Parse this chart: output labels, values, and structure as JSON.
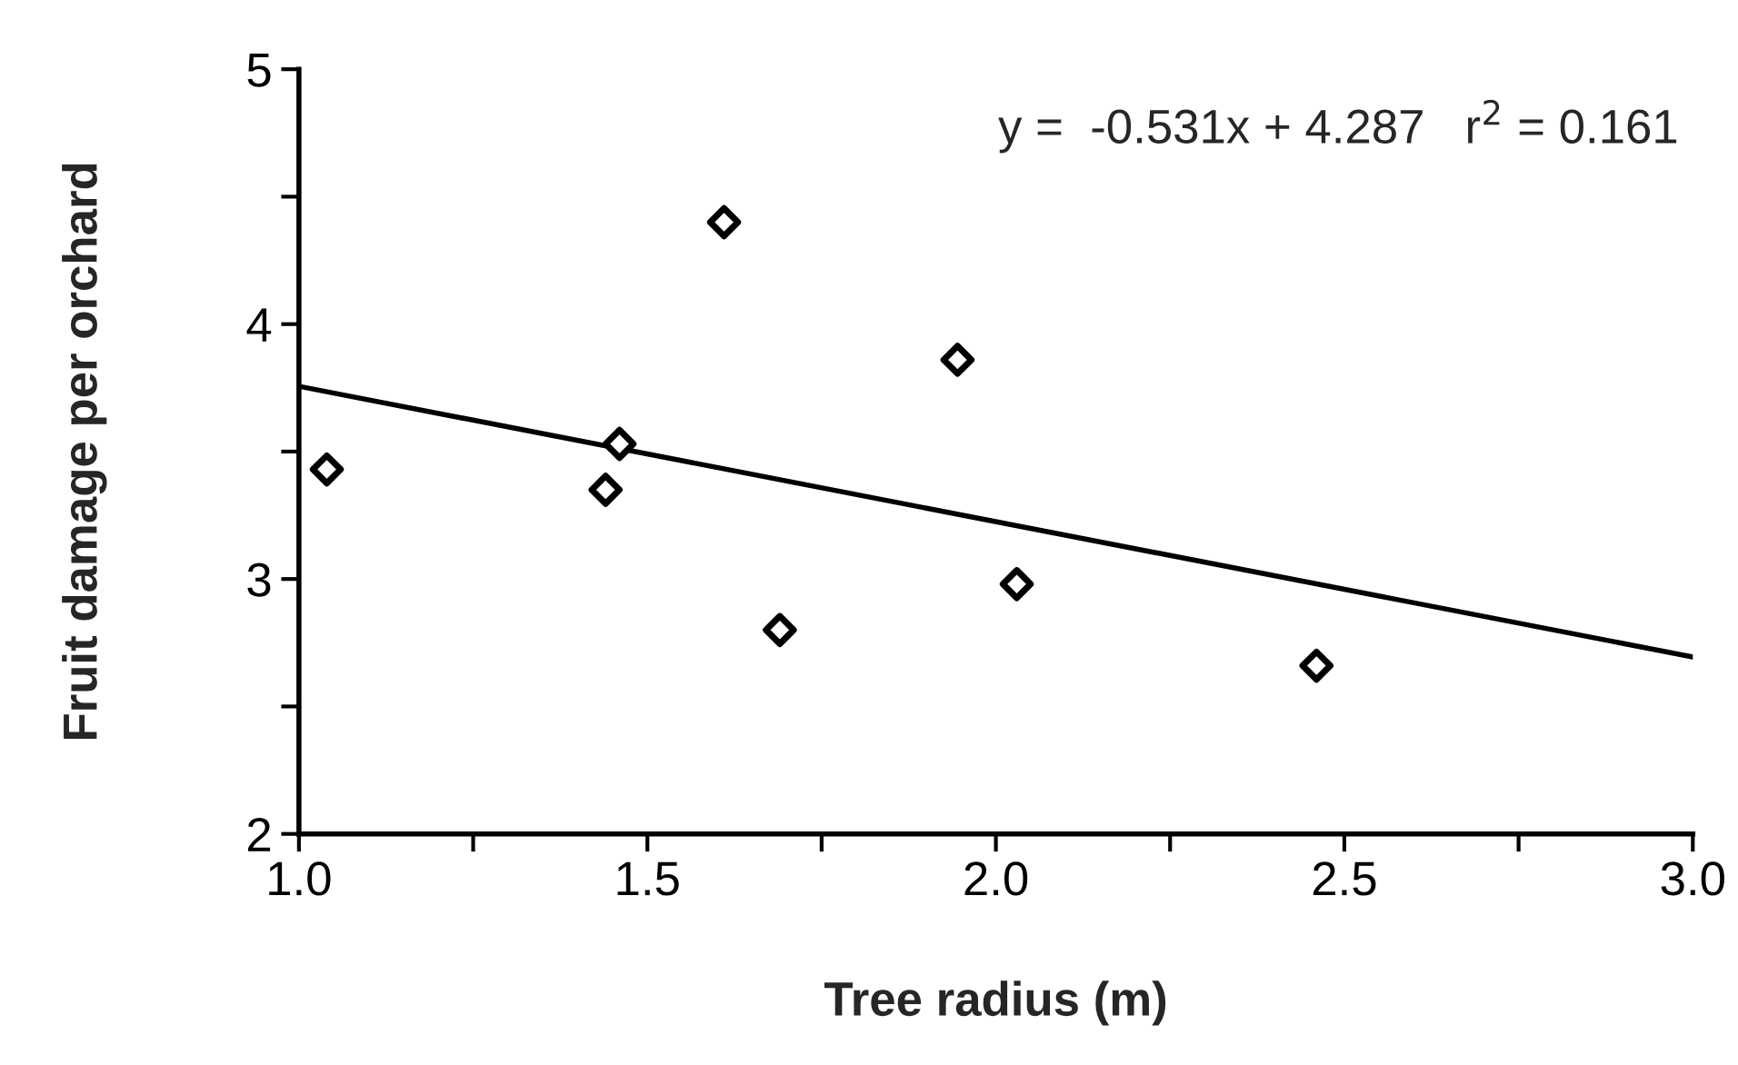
{
  "chart_data": {
    "type": "scatter",
    "xlabel": "Tree radius (m)",
    "ylabel": "Fruit damage per orchard",
    "annotations": [
      "y =  -0.531x + 4.287   r$^{2}$ = 0.161"
    ],
    "xlim": [
      1.0,
      3.0
    ],
    "ylim": [
      2,
      5
    ],
    "xticks": [
      {
        "value": 1.0,
        "label": "1.0"
      },
      {
        "value": 1.25,
        "label": null
      },
      {
        "value": 1.5,
        "label": "1.5"
      },
      {
        "value": 1.75,
        "label": null
      },
      {
        "value": 2.0,
        "label": "2.0"
      },
      {
        "value": 2.25,
        "label": null
      },
      {
        "value": 2.5,
        "label": "2.5"
      },
      {
        "value": 2.75,
        "label": null
      },
      {
        "value": 3.0,
        "label": "3.0"
      }
    ],
    "yticks": [
      2,
      {
        "value": 2.5,
        "label": null
      },
      3,
      {
        "value": 3.5,
        "label": null
      },
      4,
      {
        "value": 4.5,
        "label": null
      },
      5
    ],
    "grid": false,
    "legend": false,
    "series": [
      {
        "marker": "diamond",
        "color": "#000000",
        "x": [
          1.04,
          1.44,
          1.46,
          1.61,
          1.69,
          1.945,
          2.03,
          2.46
        ],
        "values": [
          3.43,
          3.35,
          3.53,
          4.4,
          2.8,
          3.86,
          2.98,
          2.66
        ]
      },
      {
        "type": "line",
        "marker": "none",
        "color": "#000000",
        "x": [
          1.0,
          3.0
        ],
        "values": [
          3.756,
          2.694
        ]
      }
    ]
  }
}
